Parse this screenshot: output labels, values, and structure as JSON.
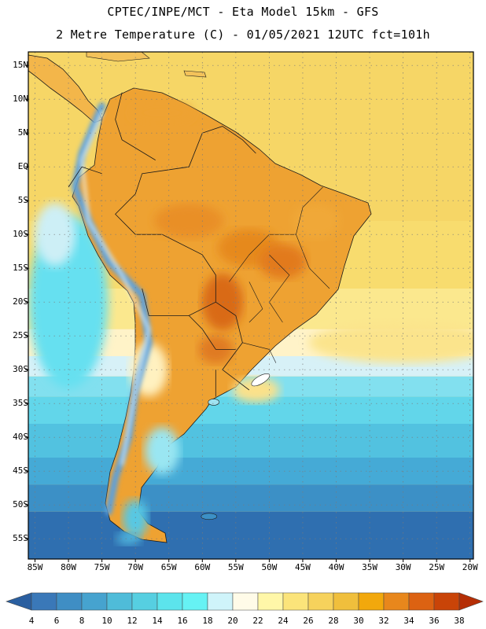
{
  "header": {
    "line1": "CPTEC/INPE/MCT -  Eta Model 15km - GFS",
    "line2": "2 Metre Temperature (C) - 01/05/2021 12UTC fct=101h"
  },
  "axes": {
    "lat_labels": [
      "15N",
      "10N",
      "5N",
      "EQ",
      "5S",
      "10S",
      "15S",
      "20S",
      "25S",
      "30S",
      "35S",
      "40S",
      "45S",
      "50S",
      "55S"
    ],
    "lat_values": [
      15,
      10,
      5,
      0,
      -5,
      -10,
      -15,
      -20,
      -25,
      -30,
      -35,
      -40,
      -45,
      -50,
      -55
    ],
    "lon_labels": [
      "85W",
      "80W",
      "75W",
      "70W",
      "65W",
      "60W",
      "55W",
      "50W",
      "45W",
      "40W",
      "35W",
      "30W",
      "25W",
      "20W"
    ],
    "lon_values": [
      -85,
      -80,
      -75,
      -70,
      -65,
      -60,
      -55,
      -50,
      -45,
      -40,
      -35,
      -30,
      -25,
      -20
    ],
    "lat_range": [
      -58,
      17
    ],
    "lon_range": [
      -86,
      -19.5
    ]
  },
  "colorbar": {
    "labels": [
      "4",
      "6",
      "8",
      "10",
      "12",
      "14",
      "16",
      "18",
      "20",
      "22",
      "24",
      "26",
      "28",
      "30",
      "32",
      "34",
      "36",
      "38"
    ],
    "colors": [
      "#2a5fa0",
      "#3a78b8",
      "#3f8ec4",
      "#46a3cf",
      "#4fbcd9",
      "#56cfe1",
      "#5ce4ec",
      "#66f2f4",
      "#cff4fa",
      "#fffbe8",
      "#fff7a8",
      "#fbe47a",
      "#f6d25c",
      "#f0bf3c",
      "#f2a80c",
      "#e8871c",
      "#dc6212",
      "#c94408",
      "#b52e05"
    ]
  },
  "legend_colors": {
    "ocean_cold": "#2f6fb0",
    "ocean_mid": "#4fa8d4",
    "ocean_cool": "#62d6ea",
    "ocean_warm": "#f4cf5c",
    "land_hot": "#eea232",
    "land_hottest": "#d96a14",
    "andes_cold": "#5ea0d8",
    "borders": "#1a1a1a"
  }
}
